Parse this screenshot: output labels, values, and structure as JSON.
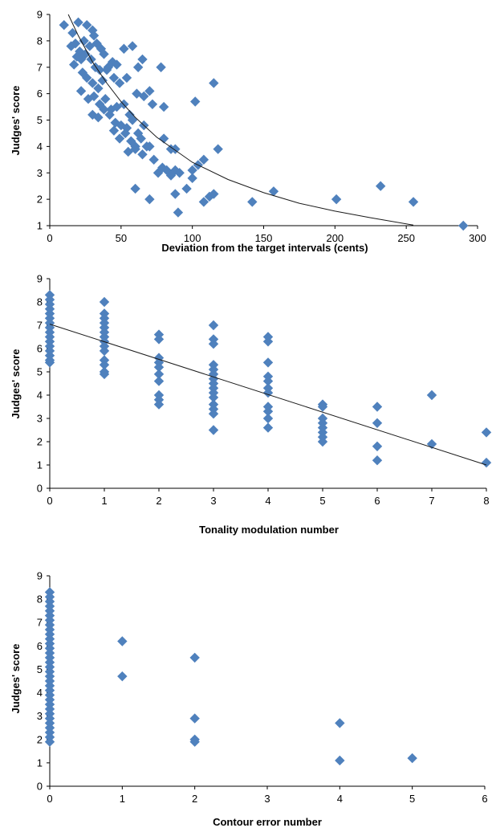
{
  "chart_data": [
    {
      "type": "scatter",
      "xlabel": "Deviation from the target intervals (cents)",
      "ylabel": "Judges' score",
      "xlim": [
        0,
        300
      ],
      "ylim": [
        1,
        9
      ],
      "xticks": [
        0,
        50,
        100,
        150,
        200,
        250,
        300
      ],
      "yticks": [
        1,
        2,
        3,
        4,
        5,
        6,
        7,
        8,
        9
      ],
      "marker": "diamond",
      "marker_color": "#4f81bd",
      "grid": false,
      "legend": "none",
      "trendline": {
        "kind": "exponential",
        "points": [
          [
            13,
            9.0
          ],
          [
            20,
            8.2
          ],
          [
            30,
            7.2
          ],
          [
            40,
            6.4
          ],
          [
            50,
            5.7
          ],
          [
            60,
            5.1
          ],
          [
            75,
            4.35
          ],
          [
            100,
            3.4
          ],
          [
            125,
            2.75
          ],
          [
            150,
            2.25
          ],
          [
            175,
            1.85
          ],
          [
            200,
            1.55
          ],
          [
            225,
            1.3
          ],
          [
            255,
            1.02
          ]
        ]
      },
      "points": [
        [
          10,
          8.6
        ],
        [
          16,
          8.3
        ],
        [
          20,
          8.7
        ],
        [
          26,
          8.6
        ],
        [
          30,
          8.4
        ],
        [
          31,
          8.2
        ],
        [
          15,
          7.8
        ],
        [
          18,
          7.9
        ],
        [
          21,
          7.6
        ],
        [
          24,
          8.0
        ],
        [
          28,
          7.8
        ],
        [
          33,
          7.9
        ],
        [
          36,
          7.7
        ],
        [
          17,
          7.1
        ],
        [
          19,
          7.4
        ],
        [
          22,
          7.3
        ],
        [
          25,
          7.5
        ],
        [
          29,
          7.3
        ],
        [
          32,
          7.0
        ],
        [
          35,
          6.9
        ],
        [
          38,
          7.5
        ],
        [
          41,
          7.0
        ],
        [
          44,
          7.2
        ],
        [
          47,
          7.1
        ],
        [
          52,
          7.7
        ],
        [
          58,
          7.8
        ],
        [
          62,
          7.0
        ],
        [
          65,
          7.3
        ],
        [
          70,
          6.1
        ],
        [
          78,
          7.0
        ],
        [
          23,
          6.8
        ],
        [
          26,
          6.6
        ],
        [
          30,
          6.4
        ],
        [
          34,
          6.2
        ],
        [
          37,
          6.5
        ],
        [
          40,
          6.9
        ],
        [
          45,
          6.6
        ],
        [
          49,
          6.4
        ],
        [
          54,
          6.6
        ],
        [
          22,
          6.1
        ],
        [
          27,
          5.8
        ],
        [
          31,
          5.9
        ],
        [
          35,
          5.6
        ],
        [
          39,
          5.8
        ],
        [
          43,
          5.4
        ],
        [
          47,
          5.5
        ],
        [
          52,
          5.6
        ],
        [
          56,
          5.2
        ],
        [
          61,
          6.0
        ],
        [
          66,
          5.9
        ],
        [
          72,
          5.6
        ],
        [
          80,
          5.5
        ],
        [
          30,
          5.2
        ],
        [
          34,
          5.1
        ],
        [
          38,
          5.4
        ],
        [
          42,
          5.2
        ],
        [
          46,
          4.9
        ],
        [
          50,
          4.8
        ],
        [
          54,
          4.7
        ],
        [
          58,
          5.0
        ],
        [
          62,
          4.5
        ],
        [
          66,
          4.8
        ],
        [
          45,
          4.6
        ],
        [
          49,
          4.3
        ],
        [
          53,
          4.5
        ],
        [
          57,
          4.2
        ],
        [
          60,
          4.0
        ],
        [
          64,
          4.3
        ],
        [
          68,
          4.0
        ],
        [
          55,
          3.8
        ],
        [
          60,
          3.9
        ],
        [
          65,
          3.7
        ],
        [
          70,
          4.0
        ],
        [
          73,
          3.5
        ],
        [
          80,
          4.3
        ],
        [
          85,
          3.9
        ],
        [
          88,
          3.9
        ],
        [
          76,
          3.0
        ],
        [
          79,
          3.2
        ],
        [
          82,
          3.1
        ],
        [
          85,
          2.9
        ],
        [
          88,
          3.1
        ],
        [
          91,
          3.0
        ],
        [
          96,
          2.4
        ],
        [
          100,
          3.1
        ],
        [
          104,
          3.3
        ],
        [
          108,
          3.5
        ],
        [
          112,
          2.1
        ],
        [
          60,
          2.4
        ],
        [
          70,
          2.0
        ],
        [
          88,
          2.2
        ],
        [
          90,
          1.5
        ],
        [
          100,
          2.8
        ],
        [
          108,
          1.9
        ],
        [
          115,
          2.2
        ],
        [
          102,
          5.7
        ],
        [
          115,
          6.4
        ],
        [
          118,
          3.9
        ],
        [
          142,
          1.9
        ],
        [
          157,
          2.3
        ],
        [
          201,
          2.0
        ],
        [
          232,
          2.5
        ],
        [
          255,
          1.9
        ],
        [
          290,
          1.0
        ]
      ]
    },
    {
      "type": "scatter",
      "xlabel": "Tonality modulation number",
      "ylabel": "Judges' score",
      "xlim": [
        0,
        8
      ],
      "ylim": [
        0,
        9
      ],
      "xticks": [
        0,
        1,
        2,
        3,
        4,
        5,
        6,
        7,
        8
      ],
      "yticks": [
        0,
        1,
        2,
        3,
        4,
        5,
        6,
        7,
        8,
        9
      ],
      "marker": "diamond",
      "marker_color": "#4f81bd",
      "grid": false,
      "legend": "none",
      "trendline": {
        "kind": "linear",
        "points": [
          [
            0,
            7.05
          ],
          [
            8,
            1.0
          ]
        ]
      },
      "points": [
        [
          0,
          8.3
        ],
        [
          0,
          8.1
        ],
        [
          0,
          7.9
        ],
        [
          0,
          7.7
        ],
        [
          0,
          7.5
        ],
        [
          0,
          7.3
        ],
        [
          0,
          7.1
        ],
        [
          0,
          6.9
        ],
        [
          0,
          6.7
        ],
        [
          0,
          6.5
        ],
        [
          0,
          6.3
        ],
        [
          0,
          6.1
        ],
        [
          0,
          5.9
        ],
        [
          0,
          5.7
        ],
        [
          0,
          5.5
        ],
        [
          0,
          5.4
        ],
        [
          1,
          8.0
        ],
        [
          1,
          7.5
        ],
        [
          1,
          7.3
        ],
        [
          1,
          7.1
        ],
        [
          1,
          6.9
        ],
        [
          1,
          6.7
        ],
        [
          1,
          6.5
        ],
        [
          1,
          6.3
        ],
        [
          1,
          6.1
        ],
        [
          1,
          5.9
        ],
        [
          1,
          5.5
        ],
        [
          1,
          5.3
        ],
        [
          1,
          5.0
        ],
        [
          1,
          4.9
        ],
        [
          2,
          6.6
        ],
        [
          2,
          6.4
        ],
        [
          2,
          5.6
        ],
        [
          2,
          5.4
        ],
        [
          2,
          5.2
        ],
        [
          2,
          4.9
        ],
        [
          2,
          4.6
        ],
        [
          2,
          4.0
        ],
        [
          2,
          3.8
        ],
        [
          2,
          3.6
        ],
        [
          3,
          7.0
        ],
        [
          3,
          6.4
        ],
        [
          3,
          6.2
        ],
        [
          3,
          5.3
        ],
        [
          3,
          5.1
        ],
        [
          3,
          4.9
        ],
        [
          3,
          4.7
        ],
        [
          3,
          4.5
        ],
        [
          3,
          4.3
        ],
        [
          3,
          4.1
        ],
        [
          3,
          3.9
        ],
        [
          3,
          3.6
        ],
        [
          3,
          3.4
        ],
        [
          3,
          3.2
        ],
        [
          3,
          2.5
        ],
        [
          4,
          6.5
        ],
        [
          4,
          6.3
        ],
        [
          4,
          5.4
        ],
        [
          4,
          4.8
        ],
        [
          4,
          4.6
        ],
        [
          4,
          4.3
        ],
        [
          4,
          4.1
        ],
        [
          4,
          3.5
        ],
        [
          4,
          3.3
        ],
        [
          4,
          3.0
        ],
        [
          4,
          2.6
        ],
        [
          5,
          3.6
        ],
        [
          5,
          3.5
        ],
        [
          5,
          3.0
        ],
        [
          5,
          2.8
        ],
        [
          5,
          2.6
        ],
        [
          5,
          2.4
        ],
        [
          5,
          2.2
        ],
        [
          5,
          2.0
        ],
        [
          6,
          3.5
        ],
        [
          6,
          2.8
        ],
        [
          6,
          1.8
        ],
        [
          6,
          1.2
        ],
        [
          7,
          4.0
        ],
        [
          7,
          1.9
        ],
        [
          8,
          2.4
        ],
        [
          8,
          1.1
        ]
      ]
    },
    {
      "type": "scatter",
      "xlabel": "Contour error number",
      "ylabel": "Judges' score",
      "xlim": [
        0,
        6
      ],
      "ylim": [
        0,
        9
      ],
      "xticks": [
        0,
        1,
        2,
        3,
        4,
        5,
        6
      ],
      "yticks": [
        0,
        1,
        2,
        3,
        4,
        5,
        6,
        7,
        8,
        9
      ],
      "marker": "diamond",
      "marker_color": "#4f81bd",
      "grid": false,
      "legend": "none",
      "points": [
        [
          0,
          8.3
        ],
        [
          0,
          8.1
        ],
        [
          0,
          7.9
        ],
        [
          0,
          7.7
        ],
        [
          0,
          7.5
        ],
        [
          0,
          7.3
        ],
        [
          0,
          7.1
        ],
        [
          0,
          6.9
        ],
        [
          0,
          6.7
        ],
        [
          0,
          6.5
        ],
        [
          0,
          6.3
        ],
        [
          0,
          6.1
        ],
        [
          0,
          5.9
        ],
        [
          0,
          5.7
        ],
        [
          0,
          5.5
        ],
        [
          0,
          5.3
        ],
        [
          0,
          5.1
        ],
        [
          0,
          4.9
        ],
        [
          0,
          4.7
        ],
        [
          0,
          4.5
        ],
        [
          0,
          4.3
        ],
        [
          0,
          4.1
        ],
        [
          0,
          3.9
        ],
        [
          0,
          3.7
        ],
        [
          0,
          3.5
        ],
        [
          0,
          3.3
        ],
        [
          0,
          3.1
        ],
        [
          0,
          2.9
        ],
        [
          0,
          2.7
        ],
        [
          0,
          2.5
        ],
        [
          0,
          2.3
        ],
        [
          0,
          2.1
        ],
        [
          0,
          1.9
        ],
        [
          1,
          6.2
        ],
        [
          1,
          4.7
        ],
        [
          2,
          5.5
        ],
        [
          2,
          2.9
        ],
        [
          2,
          2.0
        ],
        [
          2,
          1.9
        ],
        [
          4,
          2.7
        ],
        [
          4,
          1.1
        ],
        [
          5,
          1.2
        ]
      ]
    }
  ]
}
